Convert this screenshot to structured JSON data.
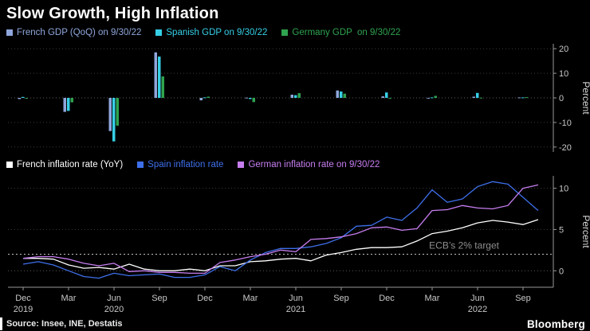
{
  "title": "Slow Growth, High Inflation",
  "footer": {
    "source": "Source: Insee, INE, Destatis",
    "logo": "Bloomberg"
  },
  "colors": {
    "background": "#000000",
    "grid": "#3a3a3a",
    "zero_line": "#5a5a5a",
    "axis": "#999999",
    "tick_text": "#c8c8c8",
    "annotation_text": "#8f8f8f",
    "annotation_line": "#c0c0c0"
  },
  "xaxis": {
    "ticks": [
      {
        "month": "Dec",
        "year": "2019"
      },
      {
        "month": "Mar"
      },
      {
        "month": "Jun",
        "year": "2020"
      },
      {
        "month": "Sep"
      },
      {
        "month": "Dec"
      },
      {
        "month": "Mar"
      },
      {
        "month": "Jun",
        "year": "2021"
      },
      {
        "month": "Sep"
      },
      {
        "month": "Dec"
      },
      {
        "month": "Mar"
      },
      {
        "month": "Jun",
        "year": "2022"
      },
      {
        "month": "Sep"
      }
    ]
  },
  "chart_data": [
    {
      "type": "bar",
      "panel": "top",
      "ylabel": "Percent",
      "ylim": [
        -22,
        22
      ],
      "yticks": [
        20,
        10,
        0,
        -10,
        -20
      ],
      "grid": true,
      "legend_position": "top",
      "categories": [
        "Dec 2019",
        "Mar 2020",
        "Jun 2020",
        "Sep 2020",
        "Dec 2020",
        "Mar 2021",
        "Jun 2021",
        "Sep 2021",
        "Dec 2021",
        "Mar 2022",
        "Jun 2022",
        "Sep 2022"
      ],
      "series": [
        {
          "name": "French GDP (QoQ) on 9/30/22",
          "color": "#8fa7dc",
          "values": [
            -0.5,
            -5.7,
            -13.5,
            18.5,
            -1.0,
            0.1,
            1.3,
            3.0,
            0.6,
            -0.2,
            0.5,
            0.2
          ]
        },
        {
          "name": "Spanish GDP on 9/30/22",
          "color": "#36cfe6",
          "values": [
            0.4,
            -5.3,
            -17.7,
            16.8,
            0.2,
            -0.5,
            1.1,
            2.6,
            2.2,
            0.2,
            2.0,
            0.2
          ]
        },
        {
          "name": "Germany GDP  on 9/30/22",
          "color": "#2fa34f",
          "values": [
            -0.1,
            -1.8,
            -11.3,
            8.7,
            0.5,
            -1.7,
            1.9,
            1.7,
            0.0,
            0.8,
            0.1,
            0.3
          ]
        }
      ]
    },
    {
      "type": "line",
      "panel": "bottom",
      "ylabel": "Percent",
      "ylim": [
        -2,
        11.5
      ],
      "yticks": [
        10,
        5,
        0
      ],
      "grid": true,
      "legend_position": "top",
      "x_first": "Dec 2019",
      "x_last": "Oct 2022",
      "x_interval": "monthly",
      "annotation": {
        "label": "ECB’s 2% target",
        "value": 2
      },
      "series": [
        {
          "name": "French inflation rate (YoY)",
          "color": "#ffffff",
          "values": [
            1.5,
            1.5,
            1.4,
            0.7,
            0.3,
            0.4,
            0.2,
            0.8,
            0.2,
            0.0,
            0.0,
            0.2,
            0.0,
            0.6,
            0.6,
            1.1,
            1.2,
            1.4,
            1.5,
            1.2,
            1.9,
            2.2,
            2.6,
            2.8,
            2.8,
            2.9,
            3.6,
            4.5,
            4.8,
            5.2,
            5.8,
            6.1,
            5.9,
            5.6,
            6.2
          ]
        },
        {
          "name": "Spain inflation rate",
          "color": "#3e6fea",
          "values": [
            0.8,
            1.1,
            0.7,
            0.0,
            -0.7,
            -0.9,
            -0.3,
            -0.6,
            -0.5,
            -0.4,
            -0.8,
            -0.8,
            -0.5,
            0.5,
            0.0,
            1.3,
            2.2,
            2.7,
            2.7,
            2.9,
            3.3,
            4.0,
            5.4,
            5.5,
            6.5,
            6.1,
            7.6,
            9.8,
            8.3,
            8.7,
            10.2,
            10.8,
            10.5,
            8.9,
            7.3
          ]
        },
        {
          "name": "German inflation rate on 9/30/22",
          "color": "#c77ef0",
          "values": [
            1.5,
            1.7,
            1.7,
            1.4,
            0.9,
            0.6,
            0.9,
            -0.1,
            0.0,
            -0.2,
            -0.2,
            -0.3,
            -0.3,
            1.0,
            1.3,
            1.7,
            2.0,
            2.5,
            2.3,
            3.8,
            3.9,
            4.1,
            4.5,
            5.2,
            5.3,
            4.9,
            5.1,
            7.3,
            7.4,
            7.9,
            7.6,
            7.5,
            7.9,
            10.0,
            10.4
          ]
        }
      ]
    }
  ]
}
